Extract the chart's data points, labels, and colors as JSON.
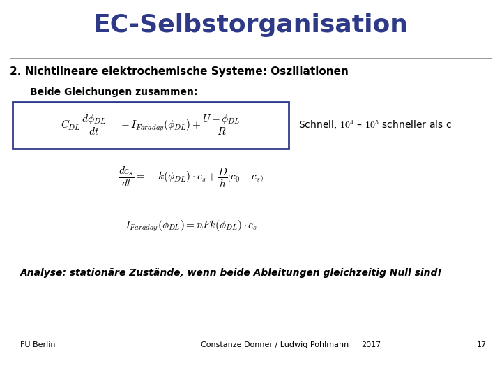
{
  "title": "EC-Selbstorganisation",
  "title_color": "#2E3A87",
  "title_fontsize": 26,
  "subtitle": "2. Nichtlineare elektrochemische Systeme: Oszillationen",
  "subtitle_fontsize": 11,
  "body_label": "Beide Gleichungen zusammen:",
  "body_label_fontsize": 10,
  "eq1_latex": "$C_{DL}\\,\\dfrac{d\\phi_{DL}}{dt} = -I_{Faraday}(\\phi_{DL})+\\dfrac{U - \\phi_{DL}}{R}$",
  "eq1_note": "Schnell, $10^4$ – $10^5$ schneller als c",
  "eq2_latex": "$\\dfrac{dc_s}{dt} = -k(\\phi_{DL})\\cdot c_s + \\dfrac{D}{h}\\left(c_0 - c_s\\right)$",
  "eq3_latex": "$I_{Faraday}(\\phi_{DL}) = nFk(\\phi_{DL})\\cdot c_s$",
  "analyse_text": "Analyse: stationäre Zustände, wenn beide Ableitungen gleichzeitig Null sind!",
  "footer_left": "FU Berlin",
  "footer_center": "Constanze Donner / Ludwig Pohlmann",
  "footer_year": "2017",
  "footer_page": "17",
  "bg_color": "#ffffff",
  "text_color": "#000000",
  "box_color": "#2E3A87",
  "title_line_color": "#888888",
  "footer_fontsize": 8,
  "analyse_fontsize": 10,
  "eq_fontsize": 11
}
